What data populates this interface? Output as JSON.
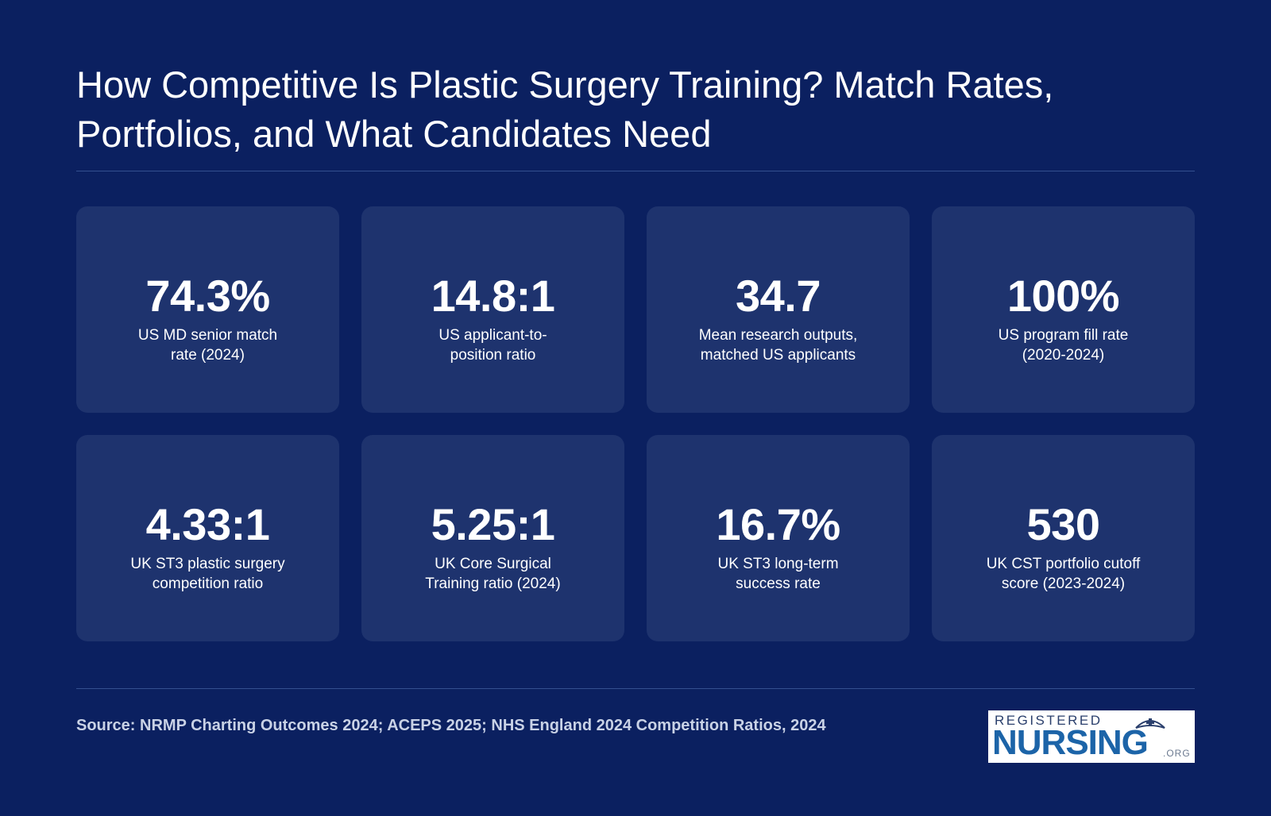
{
  "title": "How Competitive Is Plastic Surgery Training? Match Rates, Portfolios, and What Candidates Need",
  "stats": [
    {
      "value": "74.3%",
      "label": "US MD senior match rate (2024)"
    },
    {
      "value": "14.8:1",
      "label": "US applicant-to-position ratio"
    },
    {
      "value": "34.7",
      "label": "Mean research outputs, matched US applicants"
    },
    {
      "value": "100%",
      "label": "US program fill rate (2020-2024)"
    },
    {
      "value": "4.33:1",
      "label": "UK ST3 plastic surgery competition ratio"
    },
    {
      "value": "5.25:1",
      "label": "UK Core Surgical Training ratio (2024)"
    },
    {
      "value": "16.7%",
      "label": "UK ST3 long-term success rate"
    },
    {
      "value": "530",
      "label": "UK CST portfolio cutoff score (2023-2024)"
    }
  ],
  "source": "Source: NRMP Charting Outcomes 2024; ACEPS 2025; NHS England 2024 Competition Ratios, 2024",
  "logo": {
    "top": "REGISTERED",
    "main": "NURSING",
    "suffix": ".ORG"
  },
  "colors": {
    "background": "#0b2060",
    "card": "#1e336e",
    "logo_blue": "#1c64a8"
  }
}
